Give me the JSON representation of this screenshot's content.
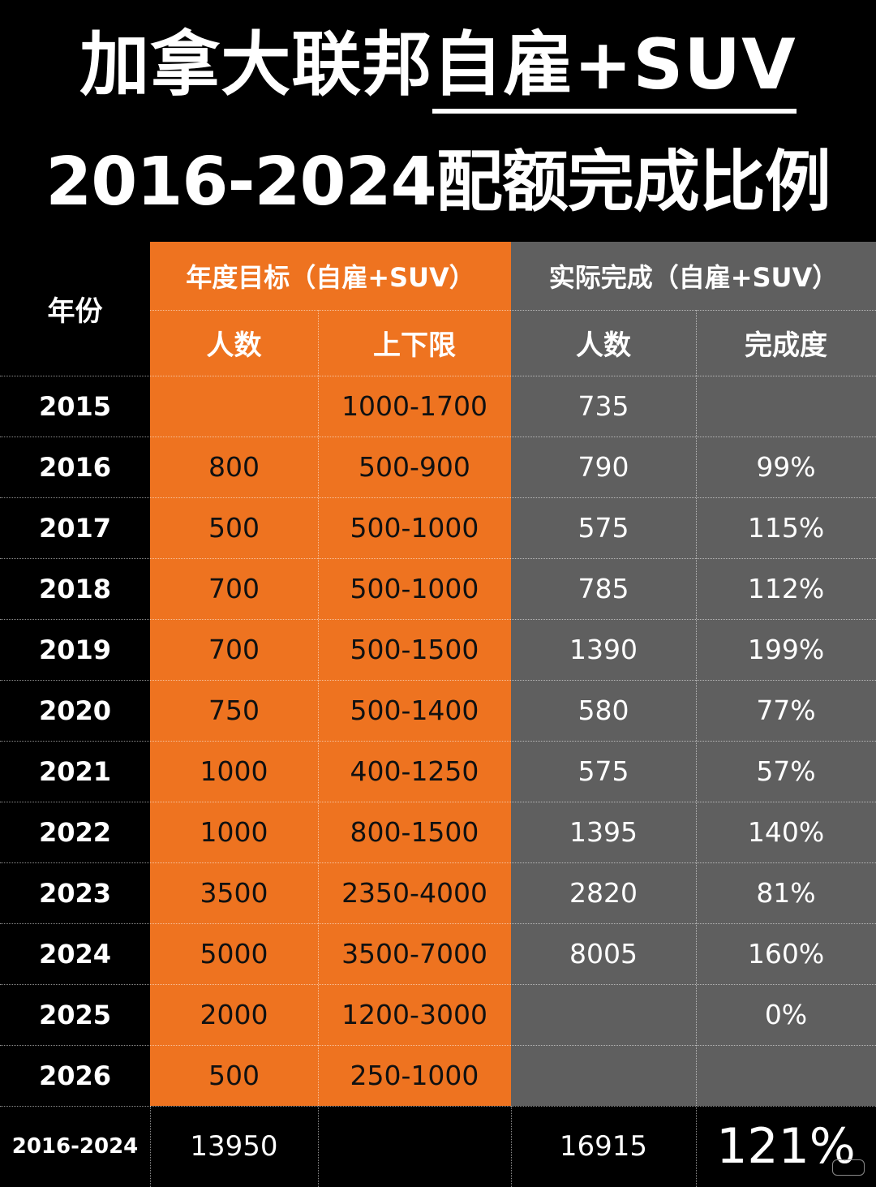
{
  "title": {
    "line1_plain": "加拿大联邦",
    "line1_underlined": "自雇+SUV",
    "line2": "2016-2024配额完成比例"
  },
  "headers": {
    "year": "年份",
    "target_group": "年度目标（自雇+SUV）",
    "actual_group": "实际完成（自雇+SUV）",
    "target_count": "人数",
    "target_range": "上下限",
    "actual_count": "人数",
    "completion": "完成度"
  },
  "rows": [
    {
      "year": "2015",
      "target": "",
      "range": "1000-1700",
      "actual": "735",
      "rate": ""
    },
    {
      "year": "2016",
      "target": "800",
      "range": "500-900",
      "actual": "790",
      "rate": "99%"
    },
    {
      "year": "2017",
      "target": "500",
      "range": "500-1000",
      "actual": "575",
      "rate": "115%"
    },
    {
      "year": "2018",
      "target": "700",
      "range": "500-1000",
      "actual": "785",
      "rate": "112%"
    },
    {
      "year": "2019",
      "target": "700",
      "range": "500-1500",
      "actual": "1390",
      "rate": "199%"
    },
    {
      "year": "2020",
      "target": "750",
      "range": "500-1400",
      "actual": "580",
      "rate": "77%"
    },
    {
      "year": "2021",
      "target": "1000",
      "range": "400-1250",
      "actual": "575",
      "rate": "57%"
    },
    {
      "year": "2022",
      "target": "1000",
      "range": "800-1500",
      "actual": "1395",
      "rate": "140%"
    },
    {
      "year": "2023",
      "target": "3500",
      "range": "2350-4000",
      "actual": "2820",
      "rate": "81%"
    },
    {
      "year": "2024",
      "target": "5000",
      "range": "3500-7000",
      "actual": "8005",
      "rate": "160%"
    },
    {
      "year": "2025",
      "target": "2000",
      "range": "1200-3000",
      "actual": "",
      "rate": "0%"
    },
    {
      "year": "2026",
      "target": "500",
      "range": "250-1000",
      "actual": "",
      "rate": ""
    }
  ],
  "total": {
    "label": "2016-2024",
    "target": "13950",
    "range": "",
    "actual": "16915",
    "rate": "121%"
  },
  "watermark": "小红书",
  "colors": {
    "target_bg": "#ee7320",
    "actual_bg": "#5f5f5f",
    "year_bg": "#000000"
  }
}
